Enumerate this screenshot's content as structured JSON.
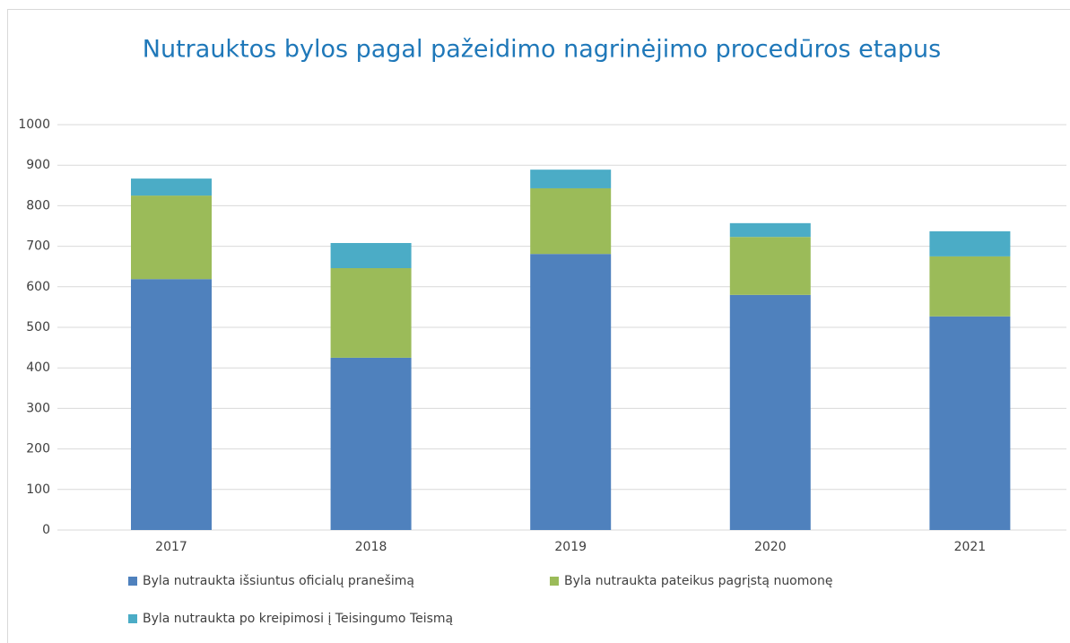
{
  "chart_data": {
    "type": "stacked_bar",
    "title": "Nutrauktos bylos pagal pažeidimo nagrinėjimo procedūros etapus",
    "categories": [
      "2017",
      "2018",
      "2019",
      "2020",
      "2021"
    ],
    "series": [
      {
        "name": "Byla nutraukta išsiuntus oficialų pranešimą",
        "color": "#4f81bd",
        "values": [
          619,
          425,
          681,
          580,
          527
        ]
      },
      {
        "name": "Byla nutraukta pateikus pagrįstą nuomonę",
        "color": "#9bbb59",
        "values": [
          206,
          221,
          162,
          143,
          148
        ]
      },
      {
        "name": "Byla nutraukta po kreipimosi į Teisingumo Teismą",
        "color": "#4bacc6",
        "values": [
          42,
          62,
          46,
          34,
          62
        ]
      }
    ],
    "ylim": [
      0,
      1000
    ],
    "yticks": [
      0,
      100,
      200,
      300,
      400,
      500,
      600,
      700,
      800,
      900,
      1000
    ],
    "grid": true,
    "legend": "bottom"
  }
}
